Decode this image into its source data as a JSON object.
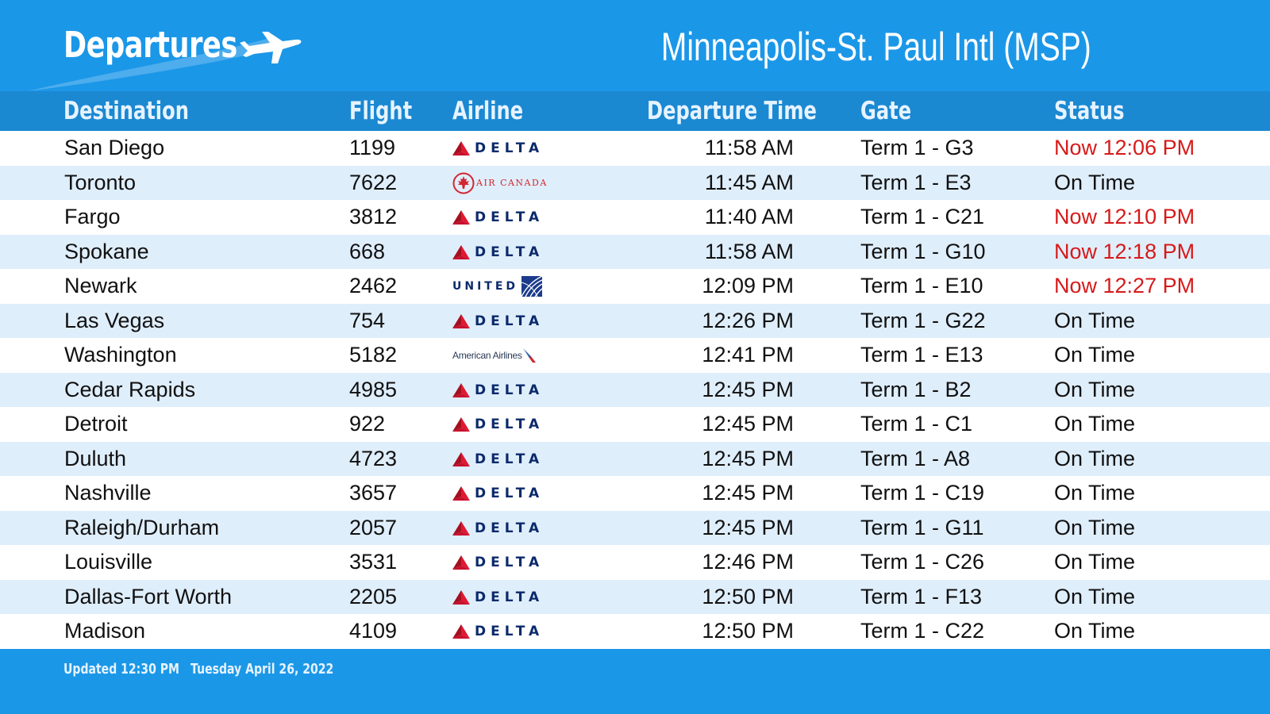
{
  "header": {
    "title": "Departures",
    "airport": "Minneapolis-St. Paul Intl (MSP)",
    "icon": "airplane-icon"
  },
  "columns": {
    "destination": "Destination",
    "flight": "Flight",
    "airline": "Airline",
    "departure_time": "Departure Time",
    "gate": "Gate",
    "status": "Status"
  },
  "colors": {
    "header_bg": "#1b97e8",
    "column_header_bg": "#1b88d2",
    "row_alt_bg": "#dfeefb",
    "delayed_text": "#d61a1a",
    "normal_text": "#111111"
  },
  "flights": [
    {
      "destination": "San Diego",
      "flight": "1199",
      "airline": "DELTA",
      "airline_logo": "delta-logo",
      "time": "11:58 AM",
      "gate": "Term 1 - G3",
      "status": "Now 12:06 PM",
      "delayed": true
    },
    {
      "destination": "Toronto",
      "flight": "7622",
      "airline": "AIR CANADA",
      "airline_logo": "air-canada-logo",
      "time": "11:45 AM",
      "gate": "Term 1 - E3",
      "status": "On Time",
      "delayed": false
    },
    {
      "destination": "Fargo",
      "flight": "3812",
      "airline": "DELTA",
      "airline_logo": "delta-logo",
      "time": "11:40 AM",
      "gate": "Term 1 - C21",
      "status": "Now 12:10 PM",
      "delayed": true
    },
    {
      "destination": "Spokane",
      "flight": "668",
      "airline": "DELTA",
      "airline_logo": "delta-logo",
      "time": "11:58 AM",
      "gate": "Term 1 - G10",
      "status": "Now 12:18 PM",
      "delayed": true
    },
    {
      "destination": "Newark",
      "flight": "2462",
      "airline": "UNITED",
      "airline_logo": "united-logo",
      "time": "12:09 PM",
      "gate": "Term 1 - E10",
      "status": "Now 12:27 PM",
      "delayed": true
    },
    {
      "destination": "Las Vegas",
      "flight": "754",
      "airline": "DELTA",
      "airline_logo": "delta-logo",
      "time": "12:26 PM",
      "gate": "Term 1 - G22",
      "status": "On Time",
      "delayed": false
    },
    {
      "destination": "Washington",
      "flight": "5182",
      "airline": "American Airlines",
      "airline_logo": "american-airlines-logo",
      "time": "12:41 PM",
      "gate": "Term 1 - E13",
      "status": "On Time",
      "delayed": false
    },
    {
      "destination": "Cedar Rapids",
      "flight": "4985",
      "airline": "DELTA",
      "airline_logo": "delta-logo",
      "time": "12:45 PM",
      "gate": "Term 1 - B2",
      "status": "On Time",
      "delayed": false
    },
    {
      "destination": "Detroit",
      "flight": "922",
      "airline": "DELTA",
      "airline_logo": "delta-logo",
      "time": "12:45 PM",
      "gate": "Term 1 - C1",
      "status": "On Time",
      "delayed": false
    },
    {
      "destination": "Duluth",
      "flight": "4723",
      "airline": "DELTA",
      "airline_logo": "delta-logo",
      "time": "12:45 PM",
      "gate": "Term 1 - A8",
      "status": "On Time",
      "delayed": false
    },
    {
      "destination": "Nashville",
      "flight": "3657",
      "airline": "DELTA",
      "airline_logo": "delta-logo",
      "time": "12:45 PM",
      "gate": "Term 1 - C19",
      "status": "On Time",
      "delayed": false
    },
    {
      "destination": "Raleigh/Durham",
      "flight": "2057",
      "airline": "DELTA",
      "airline_logo": "delta-logo",
      "time": "12:45 PM",
      "gate": "Term 1 - G11",
      "status": "On Time",
      "delayed": false
    },
    {
      "destination": "Louisville",
      "flight": "3531",
      "airline": "DELTA",
      "airline_logo": "delta-logo",
      "time": "12:46 PM",
      "gate": "Term 1 - C26",
      "status": "On Time",
      "delayed": false
    },
    {
      "destination": "Dallas-Fort Worth",
      "flight": "2205",
      "airline": "DELTA",
      "airline_logo": "delta-logo",
      "time": "12:50 PM",
      "gate": "Term 1 - F13",
      "status": "On Time",
      "delayed": false
    },
    {
      "destination": "Madison",
      "flight": "4109",
      "airline": "DELTA",
      "airline_logo": "delta-logo",
      "time": "12:50 PM",
      "gate": "Term 1 - C22",
      "status": "On Time",
      "delayed": false
    }
  ],
  "footer": {
    "updated": "Updated 12:30 PM",
    "date": "Tuesday April 26, 2022"
  }
}
